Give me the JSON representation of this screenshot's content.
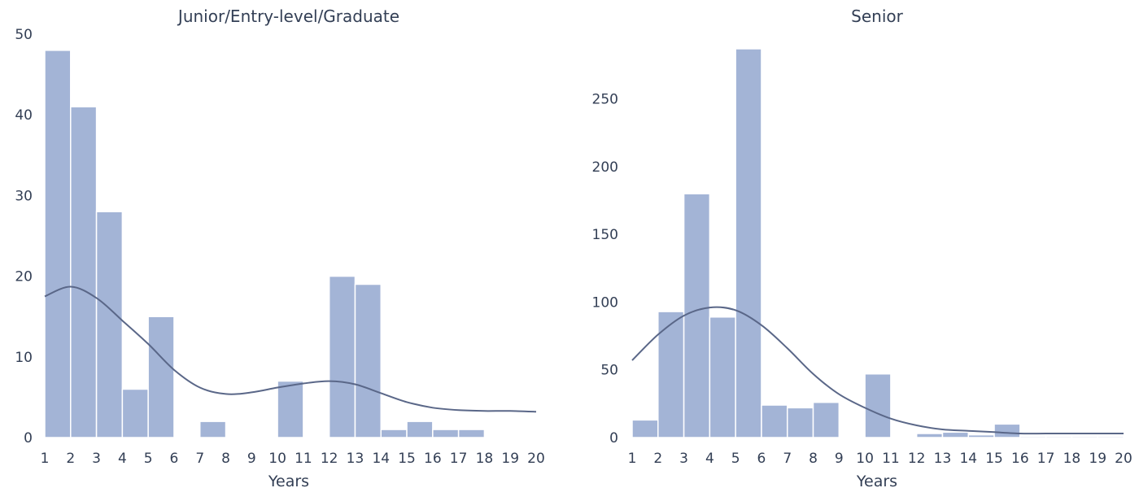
{
  "chart_data": [
    {
      "type": "bar",
      "subtype": "histogram-with-kde",
      "title": "Junior/Entry-level/Graduate",
      "xlabel": "Years",
      "ylabel": "",
      "xlim": [
        1,
        20
      ],
      "ylim": [
        0,
        50
      ],
      "xticks": [
        1,
        2,
        3,
        4,
        5,
        6,
        7,
        8,
        9,
        10,
        11,
        12,
        13,
        14,
        15,
        16,
        17,
        18,
        19,
        20
      ],
      "yticks": [
        0,
        10,
        20,
        30,
        40,
        50
      ],
      "bins": [
        {
          "start": 1,
          "end": 2,
          "value": 48
        },
        {
          "start": 2,
          "end": 3,
          "value": 41
        },
        {
          "start": 3,
          "end": 4,
          "value": 28
        },
        {
          "start": 4,
          "end": 5,
          "value": 6
        },
        {
          "start": 5,
          "end": 6,
          "value": 15
        },
        {
          "start": 6,
          "end": 7,
          "value": 0
        },
        {
          "start": 7,
          "end": 8,
          "value": 2
        },
        {
          "start": 8,
          "end": 9,
          "value": 0
        },
        {
          "start": 9,
          "end": 10,
          "value": 0
        },
        {
          "start": 10,
          "end": 11,
          "value": 7
        },
        {
          "start": 11,
          "end": 12,
          "value": 0
        },
        {
          "start": 12,
          "end": 13,
          "value": 20
        },
        {
          "start": 13,
          "end": 14,
          "value": 19
        },
        {
          "start": 14,
          "end": 15,
          "value": 1
        },
        {
          "start": 15,
          "end": 16,
          "value": 2
        },
        {
          "start": 16,
          "end": 17,
          "value": 1
        },
        {
          "start": 17,
          "end": 18,
          "value": 1
        },
        {
          "start": 18,
          "end": 19,
          "value": 0
        },
        {
          "start": 19,
          "end": 20,
          "value": 0
        }
      ],
      "kde": [
        [
          1,
          17.5
        ],
        [
          2,
          18.7
        ],
        [
          3,
          17.3
        ],
        [
          4,
          14.5
        ],
        [
          5,
          11.6
        ],
        [
          6,
          8.4
        ],
        [
          7,
          6.2
        ],
        [
          8,
          5.4
        ],
        [
          9,
          5.6
        ],
        [
          10,
          6.2
        ],
        [
          11,
          6.7
        ],
        [
          12,
          7.0
        ],
        [
          13,
          6.6
        ],
        [
          14,
          5.5
        ],
        [
          15,
          4.4
        ],
        [
          16,
          3.7
        ],
        [
          17,
          3.4
        ],
        [
          18,
          3.3
        ],
        [
          19,
          3.3
        ],
        [
          20,
          3.2
        ]
      ],
      "grid": false,
      "colors": {
        "bar": "#a3b4d6",
        "kde": "#5a6788"
      }
    },
    {
      "type": "bar",
      "subtype": "histogram-with-kde",
      "title": "Senior",
      "xlabel": "Years",
      "ylabel": "",
      "xlim": [
        1,
        20
      ],
      "ylim": [
        0,
        287
      ],
      "xticks": [
        1,
        2,
        3,
        4,
        5,
        6,
        7,
        8,
        9,
        10,
        11,
        12,
        13,
        14,
        15,
        16,
        17,
        18,
        19,
        20
      ],
      "yticks": [
        0,
        50,
        100,
        150,
        200,
        250
      ],
      "bins": [
        {
          "start": 1,
          "end": 2,
          "value": 13
        },
        {
          "start": 2,
          "end": 3,
          "value": 93
        },
        {
          "start": 3,
          "end": 4,
          "value": 180
        },
        {
          "start": 4,
          "end": 5,
          "value": 89
        },
        {
          "start": 5,
          "end": 6,
          "value": 287
        },
        {
          "start": 6,
          "end": 7,
          "value": 24
        },
        {
          "start": 7,
          "end": 8,
          "value": 22
        },
        {
          "start": 8,
          "end": 9,
          "value": 26
        },
        {
          "start": 9,
          "end": 10,
          "value": 0
        },
        {
          "start": 10,
          "end": 11,
          "value": 47
        },
        {
          "start": 11,
          "end": 12,
          "value": 0
        },
        {
          "start": 12,
          "end": 13,
          "value": 3
        },
        {
          "start": 13,
          "end": 14,
          "value": 4
        },
        {
          "start": 14,
          "end": 15,
          "value": 2
        },
        {
          "start": 15,
          "end": 16,
          "value": 10
        },
        {
          "start": 16,
          "end": 17,
          "value": 1
        },
        {
          "start": 17,
          "end": 18,
          "value": 1
        },
        {
          "start": 18,
          "end": 19,
          "value": 1
        },
        {
          "start": 19,
          "end": 20,
          "value": 1
        }
      ],
      "kde": [
        [
          1,
          57
        ],
        [
          2,
          76
        ],
        [
          3,
          90
        ],
        [
          4,
          96
        ],
        [
          5,
          94
        ],
        [
          6,
          83
        ],
        [
          7,
          66
        ],
        [
          8,
          47
        ],
        [
          9,
          32
        ],
        [
          10,
          22
        ],
        [
          11,
          14
        ],
        [
          12,
          9
        ],
        [
          13,
          6
        ],
        [
          14,
          5
        ],
        [
          15,
          4
        ],
        [
          16,
          3
        ],
        [
          17,
          3
        ],
        [
          18,
          3
        ],
        [
          19,
          3
        ],
        [
          20,
          3
        ]
      ],
      "grid": false,
      "colors": {
        "bar": "#a3b4d6",
        "kde": "#5a6788"
      }
    }
  ]
}
